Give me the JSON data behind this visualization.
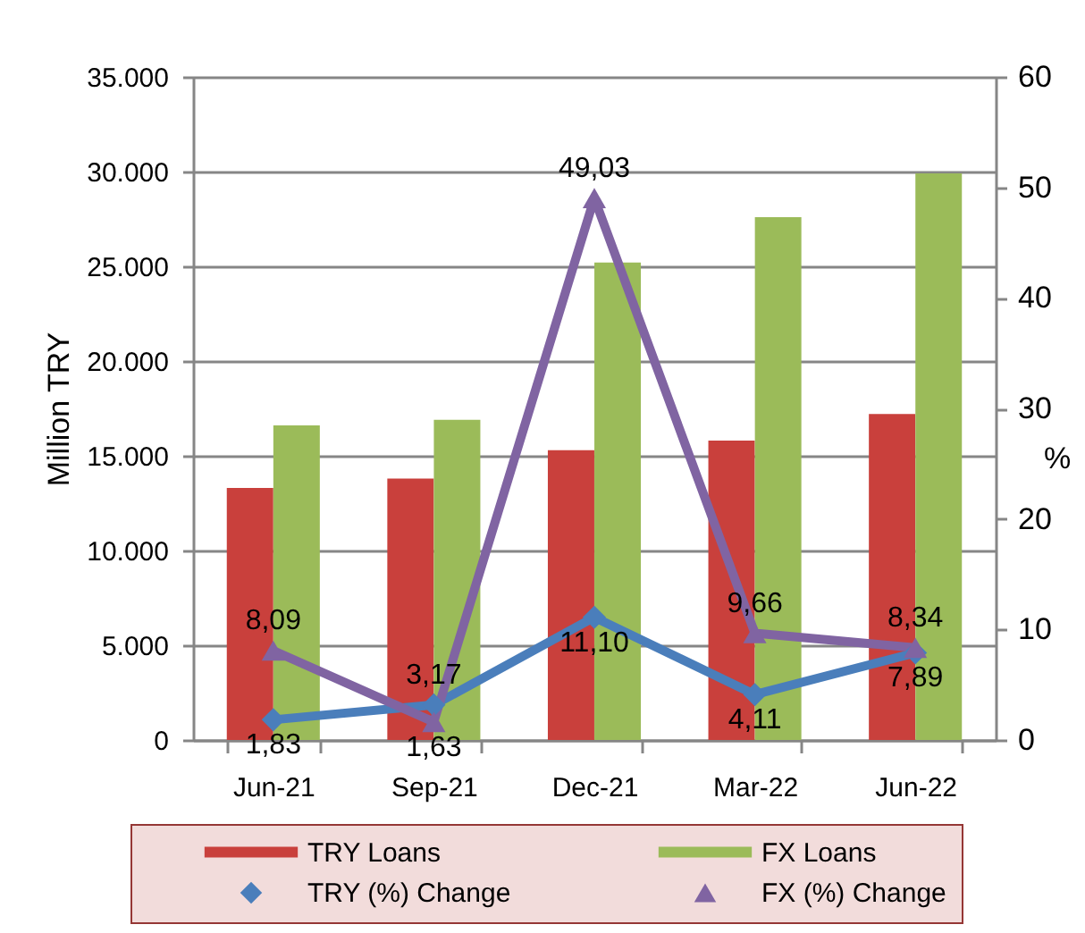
{
  "chart_data": {
    "type": "bar",
    "categories": [
      "Jun-21",
      "Sep-21",
      "Dec-21",
      "Mar-22",
      "Jun-22"
    ],
    "ylabel": "Million TRY",
    "y2label": "%",
    "ylim": [
      0,
      35000
    ],
    "yticks": [
      0,
      {
        "value": 5000,
        "label": "5.000"
      },
      {
        "value": 10000,
        "label": "10.000"
      },
      {
        "value": 15000,
        "label": "15.000"
      },
      {
        "value": 20000,
        "label": "20.000"
      },
      {
        "value": 25000,
        "label": "25.000"
      },
      {
        "value": 30000,
        "label": "30.000"
      },
      {
        "value": 35000,
        "label": "35.000"
      }
    ],
    "y2lim": [
      0,
      60
    ],
    "y2ticks": [
      0,
      10,
      20,
      30,
      40,
      50,
      60
    ],
    "grid": "y",
    "legend": "bottom",
    "series": [
      {
        "name": "TRY Loans",
        "color": "#c9403c",
        "values": [
          13300,
          13800,
          15300,
          15800,
          17200
        ]
      },
      {
        "name": "FX Loans",
        "color": "#9bbb59",
        "values": [
          16600,
          16900,
          25200,
          27600,
          29900
        ]
      },
      {
        "name": "TRY (%) Change",
        "type": "line",
        "axis": "y2",
        "color": "#4a7ebb",
        "marker": "diamond",
        "values": [
          1.83,
          3.17,
          11.1,
          4.11,
          7.89
        ],
        "value_labels": [
          "1,83",
          "3,17",
          "11,10",
          "4,11",
          "7,89"
        ]
      },
      {
        "name": "FX (%) Change",
        "type": "line",
        "axis": "y2",
        "color": "#8064a2",
        "marker": "triangle",
        "values": [
          8.09,
          1.63,
          49.03,
          9.66,
          8.34
        ],
        "value_labels": [
          "8,09",
          "1,63",
          "49,03",
          "9,66",
          "8,34"
        ]
      }
    ]
  }
}
